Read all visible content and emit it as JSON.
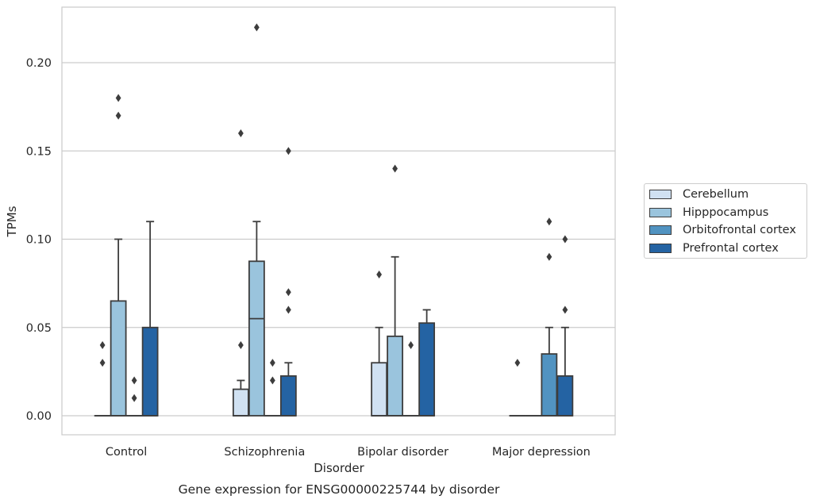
{
  "chart_data": {
    "type": "box",
    "xlabel": "Disorder",
    "ylabel": "TPMs",
    "caption": "Gene expression for ENSG00000225744 by disorder",
    "ylim": [
      -0.011,
      0.232
    ],
    "yticks": [
      "0.00",
      "0.05",
      "0.10",
      "0.15",
      "0.20"
    ],
    "ytick_values": [
      0.0,
      0.05,
      0.1,
      0.15,
      0.2
    ],
    "grid": true,
    "legend_position": "right",
    "categories": [
      "Control",
      "Schizophrenia",
      "Bipolar disorder",
      "Major depression"
    ],
    "series": [
      {
        "name": "Cerebellum",
        "color": "#d0e1f2",
        "boxes": [
          {
            "q1": 0,
            "median": 0,
            "q3": 0,
            "whisker_low": 0,
            "whisker_high": 0,
            "outliers": [
              0.03,
              0.04
            ]
          },
          {
            "q1": 0,
            "median": 0,
            "q3": 0.015,
            "whisker_low": 0,
            "whisker_high": 0.02,
            "outliers": [
              0.04,
              0.16
            ]
          },
          {
            "q1": 0,
            "median": 0,
            "q3": 0.03,
            "whisker_low": 0,
            "whisker_high": 0.05,
            "outliers": [
              0.08
            ]
          },
          {
            "q1": 0,
            "median": 0,
            "q3": 0,
            "whisker_low": 0,
            "whisker_high": 0,
            "outliers": [
              0.03
            ]
          }
        ]
      },
      {
        "name": "Hipppocampus",
        "color": "#9ac4dd",
        "boxes": [
          {
            "q1": 0,
            "median": 0,
            "q3": 0.065,
            "whisker_low": 0,
            "whisker_high": 0.1,
            "outliers": [
              0.17,
              0.18
            ]
          },
          {
            "q1": 0,
            "median": 0.055,
            "q3": 0.0875,
            "whisker_low": 0,
            "whisker_high": 0.11,
            "outliers": [
              0.22
            ]
          },
          {
            "q1": 0,
            "median": 0,
            "q3": 0.045,
            "whisker_low": 0,
            "whisker_high": 0.09,
            "outliers": [
              0.14
            ]
          },
          {
            "q1": 0,
            "median": 0,
            "q3": 0,
            "whisker_low": 0,
            "whisker_high": 0,
            "outliers": []
          }
        ]
      },
      {
        "name": "Orbitofrontal cortex",
        "color": "#5193c1",
        "boxes": [
          {
            "q1": 0,
            "median": 0,
            "q3": 0,
            "whisker_low": 0,
            "whisker_high": 0,
            "outliers": [
              0.01,
              0.02
            ]
          },
          {
            "q1": 0,
            "median": 0,
            "q3": 0,
            "whisker_low": 0,
            "whisker_high": 0,
            "outliers": [
              0.02,
              0.03
            ]
          },
          {
            "q1": 0,
            "median": 0,
            "q3": 0,
            "whisker_low": 0,
            "whisker_high": 0,
            "outliers": [
              0.04
            ]
          },
          {
            "q1": 0,
            "median": 0,
            "q3": 0.035,
            "whisker_low": 0,
            "whisker_high": 0.05,
            "outliers": [
              0.09,
              0.11
            ]
          }
        ]
      },
      {
        "name": "Prefrontal cortex",
        "color": "#2463a3",
        "boxes": [
          {
            "q1": 0,
            "median": 0,
            "q3": 0.05,
            "whisker_low": 0,
            "whisker_high": 0.11,
            "outliers": []
          },
          {
            "q1": 0,
            "median": 0,
            "q3": 0.0225,
            "whisker_low": 0,
            "whisker_high": 0.03,
            "outliers": [
              0.06,
              0.07,
              0.15
            ]
          },
          {
            "q1": 0,
            "median": 0,
            "q3": 0.0525,
            "whisker_low": 0,
            "whisker_high": 0.06,
            "outliers": []
          },
          {
            "q1": 0,
            "median": 0,
            "q3": 0.0225,
            "whisker_low": 0,
            "whisker_high": 0.05,
            "outliers": [
              0.06,
              0.1
            ]
          }
        ]
      }
    ]
  }
}
